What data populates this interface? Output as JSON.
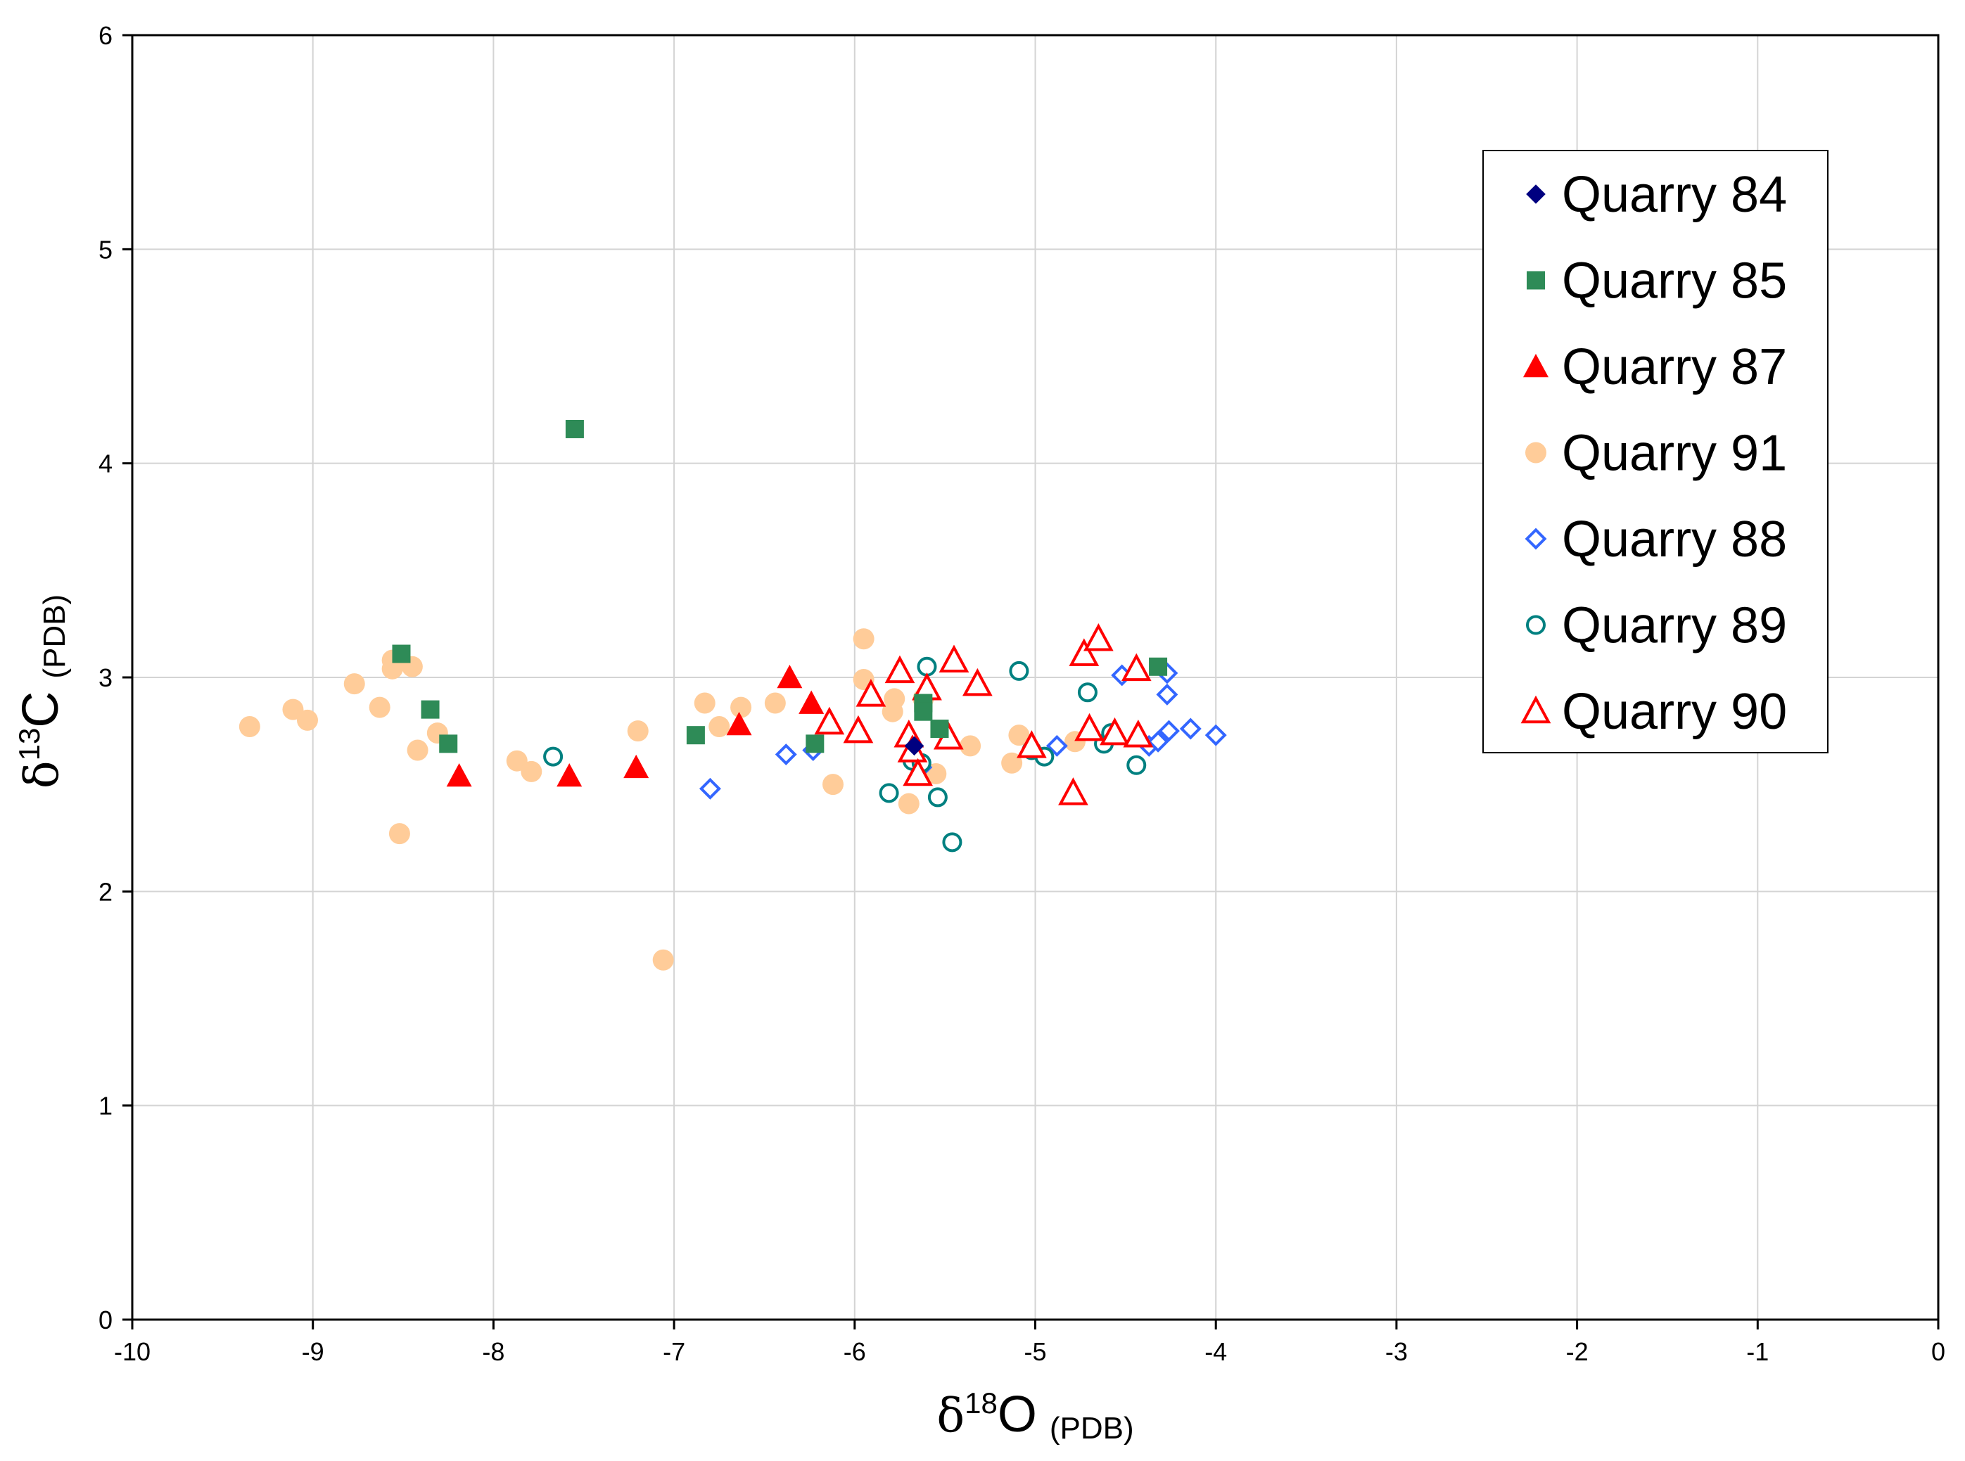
{
  "chart_data": {
    "type": "scatter",
    "title": "",
    "xlabel": {
      "symbol": "δ",
      "superscript": "18",
      "element": "O",
      "subscript": "(PDB)"
    },
    "ylabel": {
      "symbol": "δ",
      "superscript": "13",
      "element": "C",
      "subscript": "(PDB)"
    },
    "xlim": [
      -10,
      0
    ],
    "ylim": [
      0,
      6
    ],
    "xticks": [
      -10,
      -9,
      -8,
      -7,
      -6,
      -5,
      -4,
      -3,
      -2,
      -1,
      0
    ],
    "yticks": [
      0,
      1,
      2,
      3,
      4,
      5,
      6
    ],
    "grid": true,
    "legend_position": "top-right",
    "series": [
      {
        "name": "Quarry 84",
        "marker": "diamond",
        "filled": true,
        "color": "#000080",
        "points": [
          [
            -5.67,
            2.68
          ]
        ]
      },
      {
        "name": "Quarry 85",
        "marker": "square",
        "filled": true,
        "color": "#2E8B57",
        "points": [
          [
            -7.55,
            4.16
          ],
          [
            -8.51,
            3.11
          ],
          [
            -8.35,
            2.85
          ],
          [
            -8.25,
            2.69
          ],
          [
            -6.88,
            2.73
          ],
          [
            -6.22,
            2.69
          ],
          [
            -5.62,
            2.88
          ],
          [
            -5.62,
            2.84
          ],
          [
            -5.53,
            2.76
          ],
          [
            -4.32,
            3.05
          ]
        ]
      },
      {
        "name": "Quarry 87",
        "marker": "triangle",
        "filled": true,
        "color": "#FF0000",
        "points": [
          [
            -8.19,
            2.54
          ],
          [
            -7.58,
            2.54
          ],
          [
            -7.21,
            2.58
          ],
          [
            -6.64,
            2.78
          ],
          [
            -6.36,
            3.0
          ],
          [
            -6.24,
            2.88
          ]
        ]
      },
      {
        "name": "Quarry 91",
        "marker": "circle",
        "filled": true,
        "color": "#FFCC99",
        "points": [
          [
            -9.35,
            2.77
          ],
          [
            -9.11,
            2.85
          ],
          [
            -9.03,
            2.8
          ],
          [
            -8.77,
            2.97
          ],
          [
            -8.63,
            2.86
          ],
          [
            -8.56,
            3.08
          ],
          [
            -8.56,
            3.04
          ],
          [
            -8.52,
            2.27
          ],
          [
            -8.45,
            3.05
          ],
          [
            -8.42,
            2.66
          ],
          [
            -8.31,
            2.74
          ],
          [
            -7.87,
            2.61
          ],
          [
            -7.79,
            2.56
          ],
          [
            -7.2,
            2.75
          ],
          [
            -7.06,
            1.68
          ],
          [
            -6.83,
            2.88
          ],
          [
            -6.75,
            2.77
          ],
          [
            -6.63,
            2.86
          ],
          [
            -6.44,
            2.88
          ],
          [
            -6.12,
            2.5
          ],
          [
            -5.95,
            3.18
          ],
          [
            -5.95,
            2.99
          ],
          [
            -5.78,
            2.9
          ],
          [
            -5.79,
            2.84
          ],
          [
            -5.7,
            2.41
          ],
          [
            -5.62,
            2.9
          ],
          [
            -5.55,
            2.55
          ],
          [
            -5.36,
            2.68
          ],
          [
            -5.13,
            2.6
          ],
          [
            -5.09,
            2.73
          ],
          [
            -4.78,
            2.7
          ]
        ]
      },
      {
        "name": "Quarry 88",
        "marker": "diamond",
        "filled": false,
        "color": "#3366FF",
        "points": [
          [
            -6.8,
            2.48
          ],
          [
            -6.38,
            2.64
          ],
          [
            -6.23,
            2.66
          ],
          [
            -5.68,
            2.63
          ],
          [
            -5.63,
            2.58
          ],
          [
            -4.88,
            2.68
          ],
          [
            -4.52,
            3.01
          ],
          [
            -4.37,
            2.68
          ],
          [
            -4.32,
            2.7
          ],
          [
            -4.27,
            3.02
          ],
          [
            -4.27,
            2.92
          ],
          [
            -4.26,
            2.75
          ],
          [
            -4.14,
            2.76
          ],
          [
            -4.0,
            2.73
          ]
        ]
      },
      {
        "name": "Quarry 89",
        "marker": "circle",
        "filled": false,
        "color": "#008080",
        "points": [
          [
            -7.67,
            2.63
          ],
          [
            -5.81,
            2.46
          ],
          [
            -5.68,
            2.61
          ],
          [
            -5.63,
            2.6
          ],
          [
            -5.6,
            3.05
          ],
          [
            -5.54,
            2.44
          ],
          [
            -5.46,
            2.23
          ],
          [
            -5.09,
            3.03
          ],
          [
            -5.02,
            2.66
          ],
          [
            -4.95,
            2.63
          ],
          [
            -4.71,
            2.93
          ],
          [
            -4.62,
            2.69
          ],
          [
            -4.58,
            2.74
          ],
          [
            -4.44,
            2.59
          ]
        ]
      },
      {
        "name": "Quarry 90",
        "marker": "triangle",
        "filled": false,
        "color": "#FF0000",
        "points": [
          [
            -6.14,
            2.79
          ],
          [
            -5.98,
            2.75
          ],
          [
            -5.91,
            2.92
          ],
          [
            -5.75,
            3.03
          ],
          [
            -5.7,
            2.73
          ],
          [
            -5.68,
            2.66
          ],
          [
            -5.65,
            2.55
          ],
          [
            -5.6,
            2.95
          ],
          [
            -5.48,
            2.72
          ],
          [
            -5.45,
            3.08
          ],
          [
            -5.32,
            2.97
          ],
          [
            -5.02,
            2.68
          ],
          [
            -4.79,
            2.46
          ],
          [
            -4.73,
            3.11
          ],
          [
            -4.7,
            2.76
          ],
          [
            -4.65,
            3.18
          ],
          [
            -4.56,
            2.74
          ],
          [
            -4.44,
            3.04
          ],
          [
            -4.43,
            2.73
          ]
        ]
      }
    ]
  }
}
